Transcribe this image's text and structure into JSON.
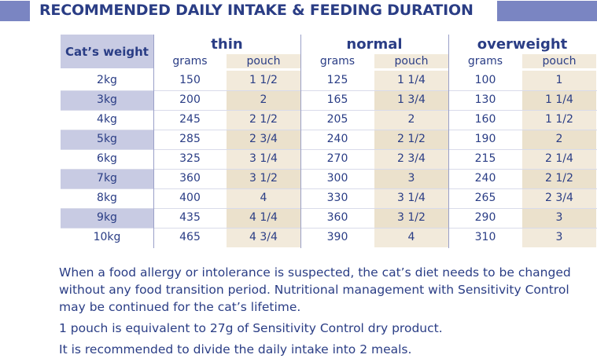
{
  "header": {
    "title": "RECOMMENDED DAILY INTAKE & FEEDING DURATION"
  },
  "table": {
    "weight_header": "Cat’s weight",
    "groups": [
      {
        "title": "thin",
        "sub": [
          "grams",
          "pouch"
        ]
      },
      {
        "title": "normal",
        "sub": [
          "grams",
          "pouch"
        ]
      },
      {
        "title": "overweight",
        "sub": [
          "grams",
          "pouch"
        ]
      }
    ],
    "rows": [
      {
        "weight": "2kg",
        "cells": [
          "150",
          "1 1/2",
          "125",
          "1 1/4",
          "100",
          "1"
        ]
      },
      {
        "weight": "3kg",
        "cells": [
          "200",
          "2",
          "165",
          "1 3/4",
          "130",
          "1 1/4"
        ]
      },
      {
        "weight": "4kg",
        "cells": [
          "245",
          "2 1/2",
          "205",
          "2",
          "160",
          "1 1/2"
        ]
      },
      {
        "weight": "5kg",
        "cells": [
          "285",
          "2 3/4",
          "240",
          "2 1/2",
          "190",
          "2"
        ]
      },
      {
        "weight": "6kg",
        "cells": [
          "325",
          "3 1/4",
          "270",
          "2 3/4",
          "215",
          "2 1/4"
        ]
      },
      {
        "weight": "7kg",
        "cells": [
          "360",
          "3 1/2",
          "300",
          "3",
          "240",
          "2 1/2"
        ]
      },
      {
        "weight": "8kg",
        "cells": [
          "400",
          "4",
          "330",
          "3 1/4",
          "265",
          "2 3/4"
        ]
      },
      {
        "weight": "9kg",
        "cells": [
          "435",
          "4 1/4",
          "360",
          "3 1/2",
          "290",
          "3"
        ]
      },
      {
        "weight": "10kg",
        "cells": [
          "465",
          "4 3/4",
          "390",
          "4",
          "310",
          "3"
        ]
      }
    ]
  },
  "notes": [
    "When a food allergy or intolerance is suspected, the cat’s diet needs to be changed without any food transition period. Nutritional management with Sensitivity Control may be continued for the cat’s lifetime.",
    "1 pouch is equivalent to 27g of Sensitivity Control dry product.",
    "It is recommended to divide the daily intake into 2 meals."
  ]
}
